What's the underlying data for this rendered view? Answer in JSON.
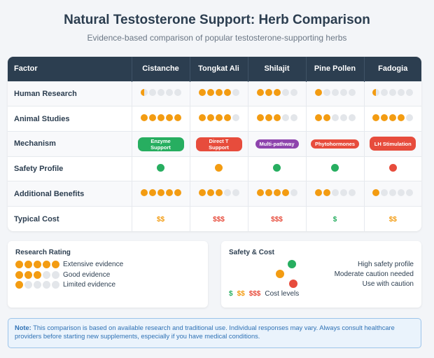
{
  "title": "Natural Testosterone Support: Herb Comparison",
  "subtitle": "Evidence-based comparison of popular testosterone-supporting herbs",
  "colors": {
    "header_bg": "#2c3e50",
    "dot_full": "#f39c12",
    "dot_empty": "#e3e6ea",
    "green": "#27ae60",
    "orange": "#f39c12",
    "red": "#e74c3c",
    "purple": "#8e44ad"
  },
  "table": {
    "headers": [
      "Factor",
      "Cistanche",
      "Tongkat Ali",
      "Shilajit",
      "Pine Pollen",
      "Fadogia"
    ],
    "rows": {
      "human_research": {
        "label": "Human Research",
        "ratings": [
          0.5,
          4,
          3,
          1,
          0.5
        ]
      },
      "animal_studies": {
        "label": "Animal Studies",
        "ratings": [
          5,
          4,
          3,
          2,
          4
        ]
      },
      "mechanism": {
        "label": "Mechanism",
        "pills": [
          {
            "text": "Enzyme Support",
            "color": "#27ae60",
            "shape": "tall"
          },
          {
            "text": "Direct T Support",
            "color": "#e74c3c",
            "shape": "tall"
          },
          {
            "text": "Multi-pathway",
            "color": "#8e44ad",
            "shape": "short"
          },
          {
            "text": "Phytohormones",
            "color": "#e74c3c",
            "shape": "short"
          },
          {
            "text": "LH Stimulation",
            "color": "#e74c3c",
            "shape": "tall"
          }
        ]
      },
      "safety_profile": {
        "label": "Safety Profile",
        "colors": [
          "#27ae60",
          "#f39c12",
          "#27ae60",
          "#27ae60",
          "#e74c3c"
        ]
      },
      "additional_benefits": {
        "label": "Additional Benefits",
        "ratings": [
          5,
          3,
          4,
          2,
          1
        ]
      },
      "typical_cost": {
        "label": "Typical Cost",
        "costs": [
          {
            "text": "$$",
            "color": "#f39c12"
          },
          {
            "text": "$$$",
            "color": "#e74c3c"
          },
          {
            "text": "$$$",
            "color": "#e74c3c"
          },
          {
            "text": "$",
            "color": "#27ae60"
          },
          {
            "text": "$$",
            "color": "#f39c12"
          }
        ]
      }
    }
  },
  "research_legend": {
    "title": "Research Rating",
    "items": [
      {
        "rating": 5,
        "label": "Extensive evidence"
      },
      {
        "rating": 3,
        "label": "Good evidence"
      },
      {
        "rating": 1,
        "label": "Limited evidence"
      }
    ]
  },
  "safety_legend": {
    "title": "Safety & Cost",
    "items": [
      {
        "color": "#27ae60",
        "label": "High safety profile"
      },
      {
        "color": "#f39c12",
        "label": "Moderate caution needed"
      },
      {
        "color": "#e74c3c",
        "label": "Use with caution"
      }
    ],
    "costs": [
      {
        "text": "$",
        "color": "#27ae60"
      },
      {
        "text": "$$",
        "color": "#f39c12"
      },
      {
        "text": "$$$",
        "color": "#e74c3c"
      }
    ],
    "cost_label": "Cost levels"
  },
  "note": {
    "label": "Note:",
    "text": "This comparison is based on available research and traditional use. Individual responses may vary. Always consult healthcare providers before starting new supplements, especially if you have medical conditions."
  }
}
